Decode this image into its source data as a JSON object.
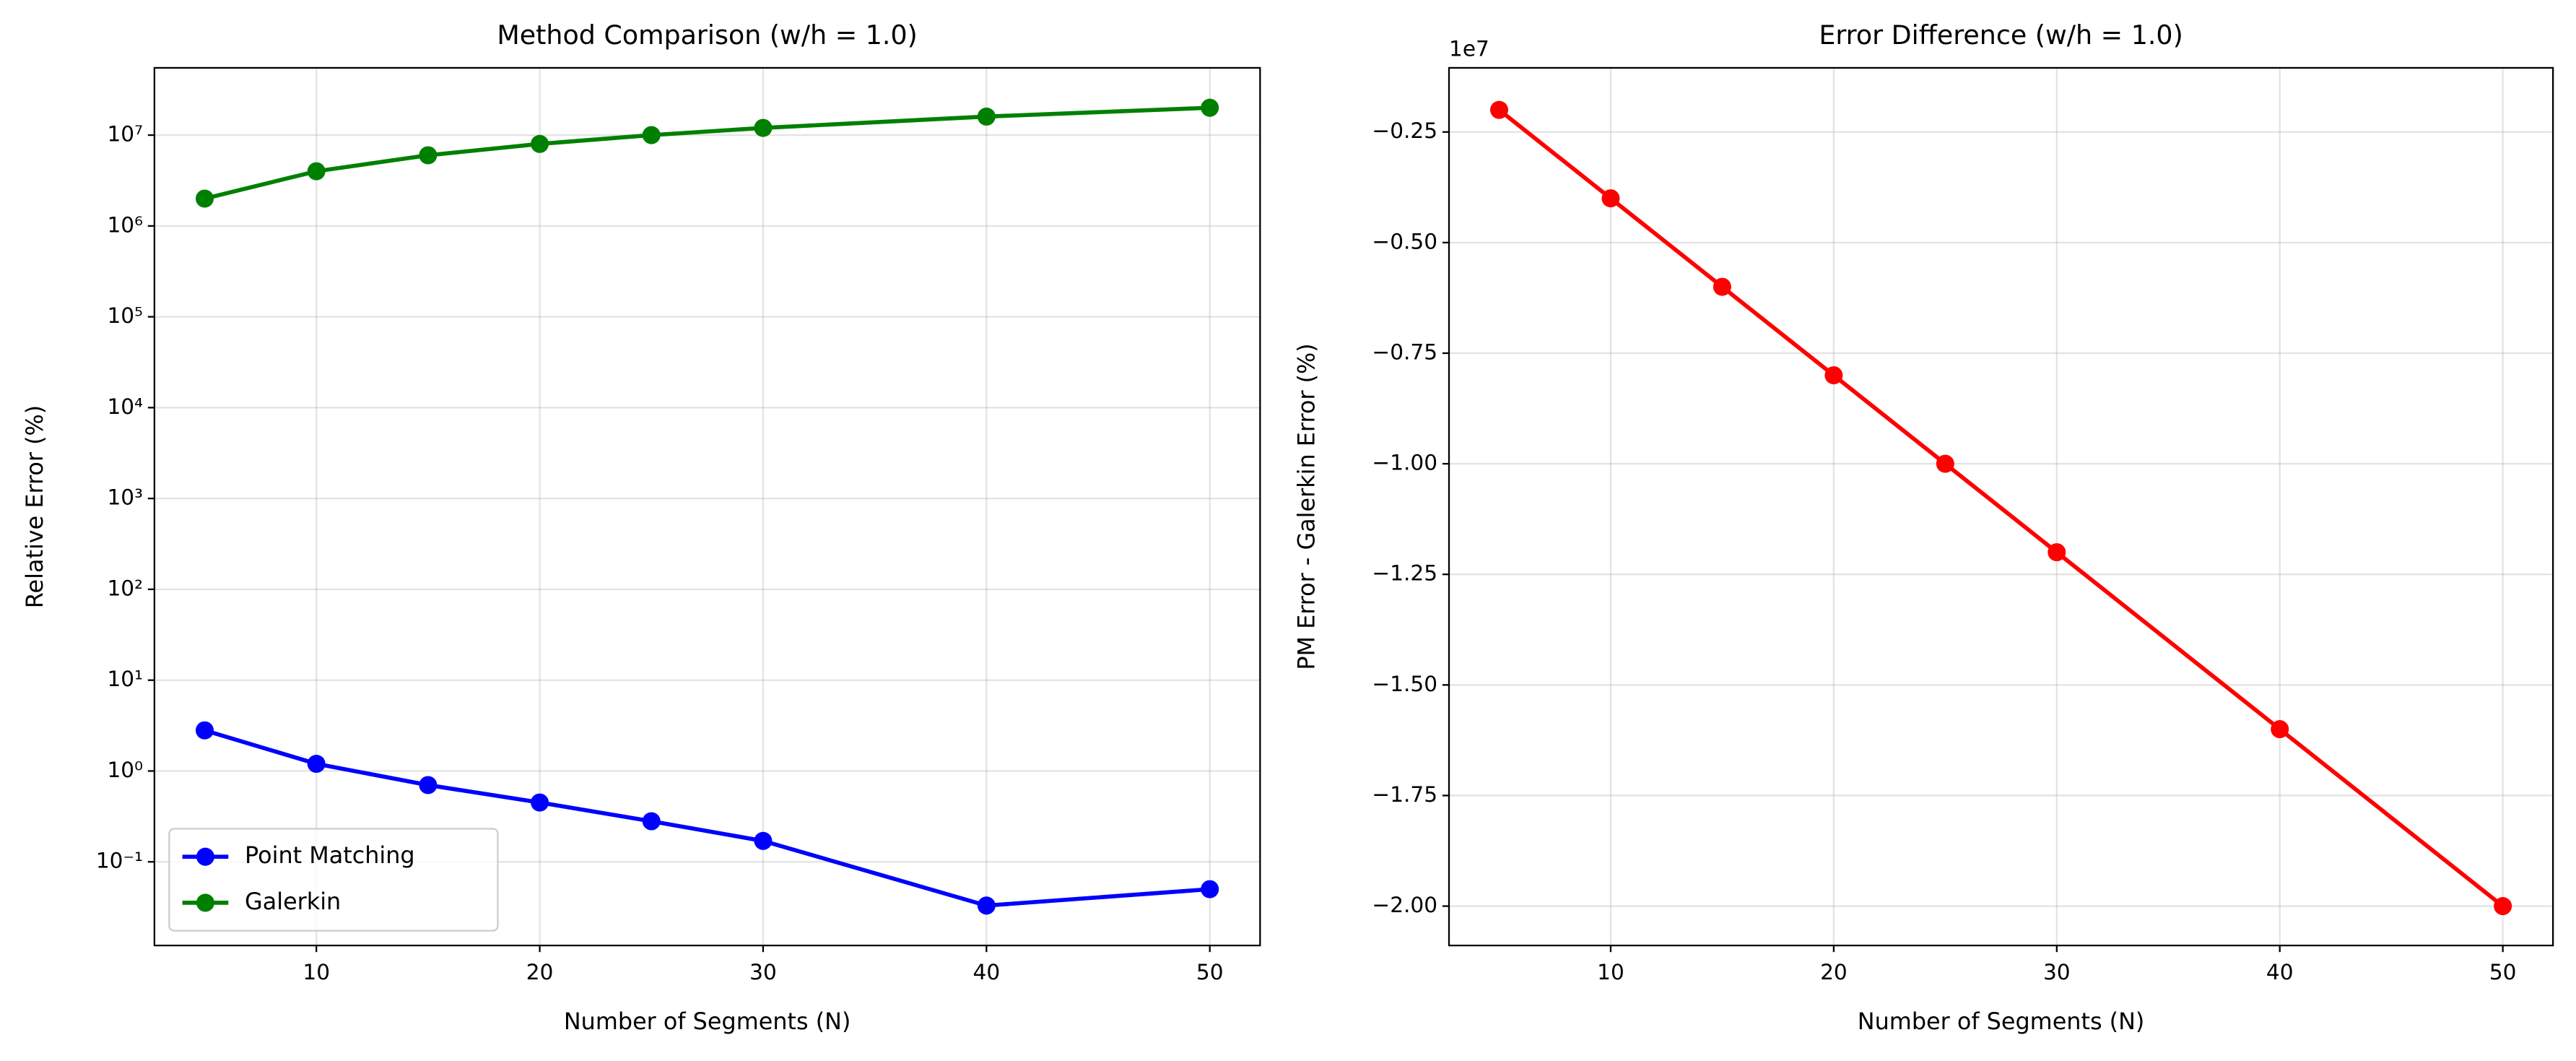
{
  "chart_data": [
    {
      "type": "line",
      "title": "Method Comparison (w/h = 1.0)",
      "xlabel": "Number of Segments (N)",
      "ylabel": "Relative Error (%)",
      "log_y": true,
      "grid": true,
      "legend": "lower left",
      "x": [
        5,
        10,
        15,
        20,
        25,
        30,
        40,
        50
      ],
      "series": [
        {
          "name": "Point Matching",
          "color": "#0000ff",
          "values": [
            2.8,
            1.2,
            0.7,
            0.45,
            0.28,
            0.17,
            0.033,
            0.05
          ]
        },
        {
          "name": "Galerkin",
          "color": "#008000",
          "values": [
            2000000,
            4000000,
            6000000,
            8000000,
            10000000,
            12000000,
            16000000,
            20000000
          ]
        }
      ],
      "xlim": [
        2.75,
        52.25
      ],
      "xticks": [
        10,
        20,
        30,
        40,
        50
      ],
      "ylim": [
        0.012,
        55000000
      ],
      "yticks": [
        {
          "value": 0.1,
          "label": "10⁻¹"
        },
        {
          "value": 1,
          "label": "10⁰"
        },
        {
          "value": 10,
          "label": "10¹"
        },
        {
          "value": 100,
          "label": "10²"
        },
        {
          "value": 1000,
          "label": "10³"
        },
        {
          "value": 10000,
          "label": "10⁴"
        },
        {
          "value": 100000,
          "label": "10⁵"
        },
        {
          "value": 1000000,
          "label": "10⁶"
        },
        {
          "value": 10000000,
          "label": "10⁷"
        }
      ]
    },
    {
      "type": "line",
      "title": "Error Difference (w/h = 1.0)",
      "xlabel": "Number of Segments (N)",
      "ylabel": "PM Error - Galerkin Error (%)",
      "log_y": false,
      "grid": true,
      "y_offset_label": "1e7",
      "x": [
        5,
        10,
        15,
        20,
        25,
        30,
        40,
        50
      ],
      "series": [
        {
          "color": "#ff0000",
          "values": [
            -1999997.2,
            -3999998.8,
            -5999999.3,
            -7999999.55,
            -9999999.72,
            -11999999.83,
            -15999999.967,
            -19999999.95
          ]
        }
      ],
      "xlim": [
        2.75,
        52.25
      ],
      "xticks": [
        10,
        20,
        30,
        40,
        50
      ],
      "ylim": [
        -20890000,
        -1050000
      ],
      "yticks": [
        {
          "value": -2500000,
          "label": "−0.25"
        },
        {
          "value": -5000000,
          "label": "−0.50"
        },
        {
          "value": -7500000,
          "label": "−0.75"
        },
        {
          "value": -10000000,
          "label": "−1.00"
        },
        {
          "value": -12500000,
          "label": "−1.25"
        },
        {
          "value": -15000000,
          "label": "−1.50"
        },
        {
          "value": -17500000,
          "label": "−1.75"
        },
        {
          "value": -20000000,
          "label": "−2.00"
        }
      ]
    }
  ]
}
